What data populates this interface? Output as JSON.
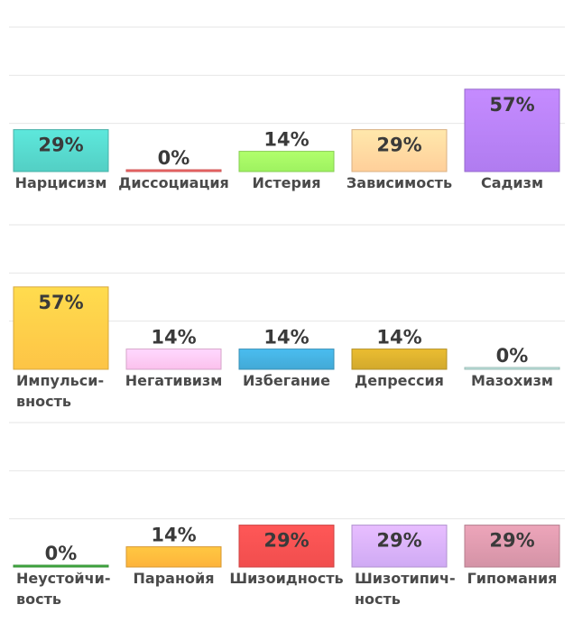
{
  "chart_data": {
    "type": "bar",
    "ylim": [
      0,
      100
    ],
    "grid": true,
    "panels": [
      {
        "categories": [
          "Нарцисизм",
          "Диссоциация",
          "Истерия",
          "Зависимость",
          "Садизм"
        ],
        "values": [
          29,
          0,
          14,
          29,
          57
        ],
        "labels": [
          "29%",
          "0%",
          "14%",
          "29%",
          "57%"
        ],
        "colors": [
          "#53cfc4",
          "#f06565",
          "#9ef260",
          "#ffcf9a",
          "#b07cf0"
        ]
      },
      {
        "categories": [
          "Импульси-\nвность",
          "Негативизм",
          "Избегание",
          "Депрессия",
          "Мазохизм"
        ],
        "values": [
          57,
          14,
          14,
          14,
          0
        ],
        "labels": [
          "57%",
          "14%",
          "14%",
          "14%",
          "0%"
        ],
        "colors": [
          "#fdc446",
          "#fbc1ec",
          "#42a9d6",
          "#d2a92c",
          "#b6dcd6"
        ]
      },
      {
        "categories": [
          "Неустойчи-\nвость",
          "Паранойя",
          "Шизоидность",
          "Шизотипич-\nность",
          "Гипомания"
        ],
        "values": [
          0,
          14,
          29,
          29,
          29
        ],
        "labels": [
          "0%",
          "14%",
          "29%",
          "29%",
          "29%"
        ],
        "colors": [
          "#3fa83f",
          "#fdb33b",
          "#f14e4e",
          "#cfaaf4",
          "#d493a6"
        ]
      }
    ]
  }
}
